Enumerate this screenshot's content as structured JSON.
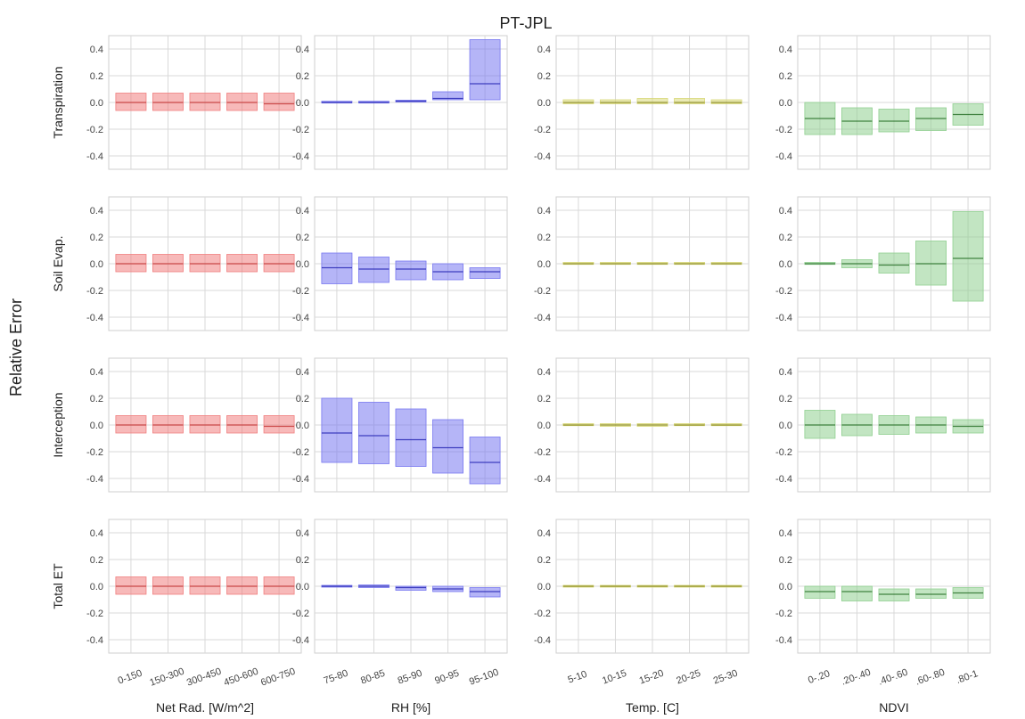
{
  "title": "PT-JPL",
  "ylabel": "Relative Error",
  "row_labels": [
    "Transpiration",
    "Soil Evap.",
    "Interception",
    "Total ET"
  ],
  "col_xlabels": [
    "Net Rad. [W/m^2]",
    "RH [%]",
    "Temp. [C]",
    "NDVI"
  ],
  "col_colors": [
    "#f08080",
    "#7878f0",
    "#d8d878",
    "#90d090"
  ],
  "col_line_colors": [
    "#c03030",
    "#2020b0",
    "#808010",
    "#206a20"
  ],
  "chart_data": {
    "type": "box",
    "ylim": [
      -0.5,
      0.5
    ],
    "yticks": [
      -0.4,
      -0.2,
      0.0,
      0.2,
      0.4
    ],
    "grid": true,
    "columns": [
      {
        "xlabel": "Net Rad. [W/m^2]",
        "categories": [
          "0-150",
          "150-300",
          "300-450",
          "450-600",
          "600-750"
        ]
      },
      {
        "xlabel": "RH [%]",
        "categories": [
          "75-80",
          "80-85",
          "85-90",
          "90-95",
          "95-100"
        ]
      },
      {
        "xlabel": "Temp. [C]",
        "categories": [
          "5-10",
          "10-15",
          "15-20",
          "20-25",
          "25-30"
        ]
      },
      {
        "xlabel": "NDVI",
        "categories": [
          "0-.20",
          ".20-.40",
          ".40-.60",
          ".60-.80",
          ".80-1"
        ]
      }
    ],
    "rows": [
      {
        "label": "Transpiration",
        "panels": [
          [
            [
              -0.06,
              0.07,
              0.0
            ],
            [
              -0.06,
              0.07,
              0.0
            ],
            [
              -0.06,
              0.07,
              0.0
            ],
            [
              -0.06,
              0.07,
              0.0
            ],
            [
              -0.06,
              0.07,
              -0.01
            ]
          ],
          [
            [
              0.0,
              0.005,
              0.0
            ],
            [
              0.0,
              0.005,
              0.0
            ],
            [
              0.005,
              0.015,
              0.01
            ],
            [
              0.02,
              0.08,
              0.03
            ],
            [
              0.02,
              0.47,
              0.14
            ]
          ],
          [
            [
              -0.01,
              0.02,
              0.0
            ],
            [
              -0.01,
              0.02,
              0.0
            ],
            [
              -0.01,
              0.03,
              0.0
            ],
            [
              -0.01,
              0.03,
              0.0
            ],
            [
              -0.01,
              0.02,
              0.0
            ]
          ],
          [
            [
              -0.24,
              0.0,
              -0.12
            ],
            [
              -0.24,
              -0.04,
              -0.14
            ],
            [
              -0.22,
              -0.05,
              -0.14
            ],
            [
              -0.21,
              -0.04,
              -0.12
            ],
            [
              -0.17,
              -0.01,
              -0.09
            ]
          ]
        ]
      },
      {
        "label": "Soil Evap.",
        "panels": [
          [
            [
              -0.06,
              0.07,
              0.0
            ],
            [
              -0.06,
              0.07,
              0.0
            ],
            [
              -0.06,
              0.07,
              0.0
            ],
            [
              -0.06,
              0.07,
              0.0
            ],
            [
              -0.06,
              0.07,
              0.0
            ]
          ],
          [
            [
              -0.15,
              0.08,
              -0.03
            ],
            [
              -0.14,
              0.05,
              -0.04
            ],
            [
              -0.12,
              0.02,
              -0.04
            ],
            [
              -0.12,
              0.0,
              -0.06
            ],
            [
              -0.11,
              -0.03,
              -0.06
            ]
          ],
          [
            [
              -0.005,
              0.01,
              0.0
            ],
            [
              -0.005,
              0.01,
              0.0
            ],
            [
              -0.005,
              0.01,
              0.0
            ],
            [
              -0.005,
              0.01,
              0.0
            ],
            [
              -0.005,
              0.01,
              0.0
            ]
          ],
          [
            [
              -0.005,
              0.01,
              0.0
            ],
            [
              -0.03,
              0.03,
              0.0
            ],
            [
              -0.07,
              0.08,
              -0.01
            ],
            [
              -0.16,
              0.17,
              0.0
            ],
            [
              -0.28,
              0.39,
              0.04
            ]
          ]
        ]
      },
      {
        "label": "Interception",
        "panels": [
          [
            [
              -0.06,
              0.07,
              0.0
            ],
            [
              -0.06,
              0.07,
              0.0
            ],
            [
              -0.06,
              0.07,
              0.0
            ],
            [
              -0.06,
              0.07,
              0.0
            ],
            [
              -0.06,
              0.07,
              -0.01
            ]
          ],
          [
            [
              -0.28,
              0.2,
              -0.06
            ],
            [
              -0.29,
              0.17,
              -0.08
            ],
            [
              -0.31,
              0.12,
              -0.11
            ],
            [
              -0.36,
              0.04,
              -0.17
            ],
            [
              -0.44,
              -0.09,
              -0.28
            ]
          ],
          [
            [
              -0.005,
              0.01,
              0.0
            ],
            [
              -0.01,
              0.01,
              0.0
            ],
            [
              -0.01,
              0.01,
              0.0
            ],
            [
              -0.005,
              0.01,
              0.0
            ],
            [
              -0.005,
              0.01,
              0.0
            ]
          ],
          [
            [
              -0.1,
              0.11,
              0.0
            ],
            [
              -0.08,
              0.08,
              0.0
            ],
            [
              -0.07,
              0.07,
              0.0
            ],
            [
              -0.06,
              0.06,
              0.0
            ],
            [
              -0.06,
              0.04,
              -0.01
            ]
          ]
        ]
      },
      {
        "label": "Total ET",
        "panels": [
          [
            [
              -0.06,
              0.07,
              0.0
            ],
            [
              -0.06,
              0.07,
              0.0
            ],
            [
              -0.06,
              0.07,
              0.0
            ],
            [
              -0.06,
              0.07,
              0.0
            ],
            [
              -0.06,
              0.07,
              0.0
            ]
          ],
          [
            [
              -0.005,
              0.005,
              0.0
            ],
            [
              -0.01,
              0.01,
              0.0
            ],
            [
              -0.03,
              0.0,
              -0.01
            ],
            [
              -0.04,
              0.0,
              -0.02
            ],
            [
              -0.08,
              -0.01,
              -0.04
            ]
          ],
          [
            [
              -0.005,
              0.005,
              0.0
            ],
            [
              -0.005,
              0.005,
              0.0
            ],
            [
              -0.005,
              0.005,
              0.0
            ],
            [
              -0.005,
              0.005,
              0.0
            ],
            [
              -0.005,
              0.005,
              0.0
            ]
          ],
          [
            [
              -0.09,
              0.0,
              -0.04
            ],
            [
              -0.11,
              0.0,
              -0.04
            ],
            [
              -0.11,
              -0.02,
              -0.06
            ],
            [
              -0.09,
              -0.02,
              -0.06
            ],
            [
              -0.09,
              -0.01,
              -0.05
            ]
          ]
        ]
      }
    ]
  }
}
